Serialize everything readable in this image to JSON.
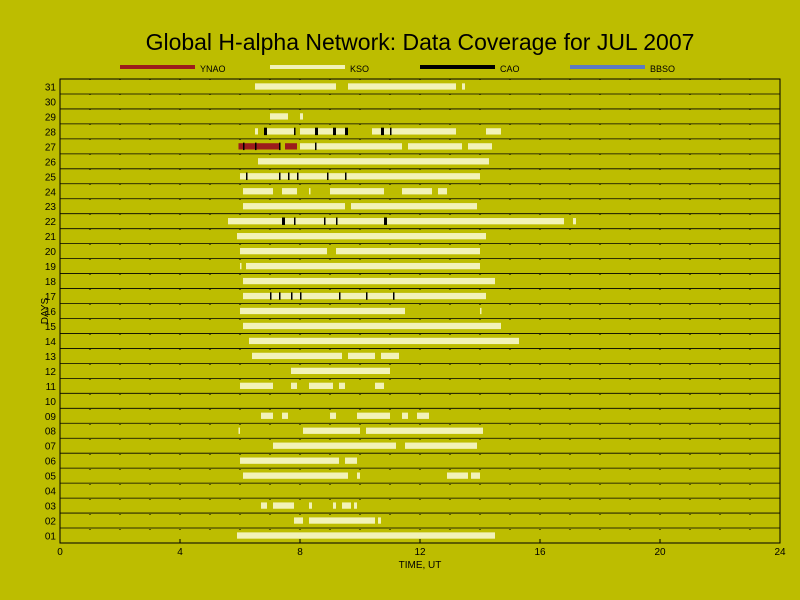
{
  "chart_data": {
    "type": "gantt",
    "title": "Global H-alpha Network: Data Coverage for JUL 2007",
    "xlabel": "TIME, UT",
    "ylabel": "DAYS",
    "xlim": [
      0,
      24
    ],
    "x_ticks": [
      0,
      4,
      8,
      12,
      16,
      20,
      24
    ],
    "days": [
      "01",
      "02",
      "03",
      "04",
      "05",
      "06",
      "07",
      "08",
      "09",
      "10",
      "11",
      "12",
      "13",
      "14",
      "15",
      "16",
      "17",
      "18",
      "19",
      "20",
      "21",
      "22",
      "23",
      "24",
      "25",
      "26",
      "27",
      "28",
      "29",
      "30",
      "31"
    ],
    "grid": "dotted",
    "legend_placement": "top",
    "series": [
      {
        "name": "YNAO",
        "color": "#9c1c1c",
        "intervals": [
          {
            "day": 27,
            "start": 5.95,
            "end": 7.3
          },
          {
            "day": 27,
            "start": 7.5,
            "end": 7.9
          }
        ]
      },
      {
        "name": "KSO",
        "color": "#f2f2b8",
        "intervals": [
          {
            "day": 31,
            "start": 6.5,
            "end": 9.2
          },
          {
            "day": 31,
            "start": 9.6,
            "end": 13.2
          },
          {
            "day": 31,
            "start": 13.4,
            "end": 13.5
          },
          {
            "day": 29,
            "start": 7.0,
            "end": 7.6
          },
          {
            "day": 29,
            "start": 8.0,
            "end": 8.1
          },
          {
            "day": 28,
            "start": 6.5,
            "end": 6.6
          },
          {
            "day": 28,
            "start": 6.8,
            "end": 7.8
          },
          {
            "day": 28,
            "start": 8.0,
            "end": 9.6
          },
          {
            "day": 28,
            "start": 10.4,
            "end": 13.2
          },
          {
            "day": 28,
            "start": 14.2,
            "end": 14.7
          },
          {
            "day": 27,
            "start": 8.0,
            "end": 11.4
          },
          {
            "day": 27,
            "start": 11.6,
            "end": 13.4
          },
          {
            "day": 27,
            "start": 13.6,
            "end": 14.4
          },
          {
            "day": 26,
            "start": 6.6,
            "end": 14.3
          },
          {
            "day": 25,
            "start": 6.0,
            "end": 14.0
          },
          {
            "day": 24,
            "start": 6.1,
            "end": 7.1
          },
          {
            "day": 24,
            "start": 7.4,
            "end": 7.9
          },
          {
            "day": 24,
            "start": 8.3,
            "end": 8.35
          },
          {
            "day": 24,
            "start": 9.0,
            "end": 10.8
          },
          {
            "day": 24,
            "start": 11.4,
            "end": 12.4
          },
          {
            "day": 24,
            "start": 12.6,
            "end": 12.9
          },
          {
            "day": 23,
            "start": 6.1,
            "end": 9.5
          },
          {
            "day": 23,
            "start": 9.7,
            "end": 13.9
          },
          {
            "day": 22,
            "start": 5.6,
            "end": 16.8
          },
          {
            "day": 22,
            "start": 17.1,
            "end": 17.2
          },
          {
            "day": 21,
            "start": 5.9,
            "end": 14.2
          },
          {
            "day": 20,
            "start": 6.0,
            "end": 8.9
          },
          {
            "day": 20,
            "start": 9.2,
            "end": 14.0
          },
          {
            "day": 19,
            "start": 6.0,
            "end": 6.05
          },
          {
            "day": 19,
            "start": 6.2,
            "end": 14.0
          },
          {
            "day": 18,
            "start": 6.1,
            "end": 14.5
          },
          {
            "day": 17,
            "start": 6.1,
            "end": 14.2
          },
          {
            "day": 16,
            "start": 6.0,
            "end": 11.5
          },
          {
            "day": 16,
            "start": 14.0,
            "end": 14.05
          },
          {
            "day": 15,
            "start": 6.1,
            "end": 14.7
          },
          {
            "day": 14,
            "start": 6.3,
            "end": 15.3
          },
          {
            "day": 13,
            "start": 6.4,
            "end": 9.4
          },
          {
            "day": 13,
            "start": 9.6,
            "end": 10.5
          },
          {
            "day": 13,
            "start": 10.7,
            "end": 11.3
          },
          {
            "day": 12,
            "start": 7.7,
            "end": 11.0
          },
          {
            "day": 11,
            "start": 6.0,
            "end": 7.1
          },
          {
            "day": 11,
            "start": 7.7,
            "end": 7.9
          },
          {
            "day": 11,
            "start": 8.3,
            "end": 9.1
          },
          {
            "day": 11,
            "start": 9.3,
            "end": 9.5
          },
          {
            "day": 11,
            "start": 10.5,
            "end": 10.8
          },
          {
            "day": 9,
            "start": 6.7,
            "end": 7.1
          },
          {
            "day": 9,
            "start": 7.4,
            "end": 7.6
          },
          {
            "day": 9,
            "start": 9.0,
            "end": 9.2
          },
          {
            "day": 9,
            "start": 9.9,
            "end": 11.0
          },
          {
            "day": 9,
            "start": 11.4,
            "end": 11.6
          },
          {
            "day": 9,
            "start": 11.9,
            "end": 12.3
          },
          {
            "day": 8,
            "start": 5.95,
            "end": 6.0
          },
          {
            "day": 8,
            "start": 8.1,
            "end": 10.0
          },
          {
            "day": 8,
            "start": 10.2,
            "end": 14.1
          },
          {
            "day": 7,
            "start": 7.1,
            "end": 11.2
          },
          {
            "day": 7,
            "start": 11.5,
            "end": 13.9
          },
          {
            "day": 6,
            "start": 6.0,
            "end": 9.3
          },
          {
            "day": 6,
            "start": 9.5,
            "end": 9.9
          },
          {
            "day": 5,
            "start": 6.1,
            "end": 9.6
          },
          {
            "day": 5,
            "start": 9.9,
            "end": 10.0
          },
          {
            "day": 5,
            "start": 12.9,
            "end": 13.6
          },
          {
            "day": 5,
            "start": 13.7,
            "end": 14.0
          },
          {
            "day": 3,
            "start": 6.7,
            "end": 6.9
          },
          {
            "day": 3,
            "start": 7.1,
            "end": 7.8
          },
          {
            "day": 3,
            "start": 8.3,
            "end": 8.4
          },
          {
            "day": 3,
            "start": 9.1,
            "end": 9.2
          },
          {
            "day": 3,
            "start": 9.4,
            "end": 9.7
          },
          {
            "day": 3,
            "start": 9.8,
            "end": 9.9
          },
          {
            "day": 2,
            "start": 7.8,
            "end": 8.1
          },
          {
            "day": 2,
            "start": 8.3,
            "end": 10.5
          },
          {
            "day": 2,
            "start": 10.6,
            "end": 10.7
          },
          {
            "day": 1,
            "start": 5.9,
            "end": 14.5
          }
        ]
      },
      {
        "name": "CAO",
        "color": "#000000",
        "intervals": [
          {
            "day": 28,
            "start": 6.8,
            "end": 6.9
          },
          {
            "day": 28,
            "start": 7.8,
            "end": 7.85
          },
          {
            "day": 28,
            "start": 8.5,
            "end": 8.6
          },
          {
            "day": 28,
            "start": 9.1,
            "end": 9.2
          },
          {
            "day": 28,
            "start": 9.5,
            "end": 9.6
          },
          {
            "day": 28,
            "start": 10.7,
            "end": 10.8
          },
          {
            "day": 28,
            "start": 11.0,
            "end": 11.05
          },
          {
            "day": 27,
            "start": 6.1,
            "end": 6.15
          },
          {
            "day": 27,
            "start": 6.5,
            "end": 6.55
          },
          {
            "day": 27,
            "start": 7.3,
            "end": 7.35
          },
          {
            "day": 27,
            "start": 8.5,
            "end": 8.55
          },
          {
            "day": 25,
            "start": 6.2,
            "end": 6.25
          },
          {
            "day": 25,
            "start": 7.3,
            "end": 7.35
          },
          {
            "day": 25,
            "start": 7.6,
            "end": 7.65
          },
          {
            "day": 25,
            "start": 7.9,
            "end": 7.95
          },
          {
            "day": 25,
            "start": 8.9,
            "end": 8.95
          },
          {
            "day": 25,
            "start": 9.5,
            "end": 9.55
          },
          {
            "day": 22,
            "start": 7.4,
            "end": 7.5
          },
          {
            "day": 22,
            "start": 7.8,
            "end": 7.85
          },
          {
            "day": 22,
            "start": 8.8,
            "end": 8.85
          },
          {
            "day": 22,
            "start": 9.2,
            "end": 9.25
          },
          {
            "day": 22,
            "start": 10.8,
            "end": 10.9
          },
          {
            "day": 17,
            "start": 7.0,
            "end": 7.05
          },
          {
            "day": 17,
            "start": 7.3,
            "end": 7.35
          },
          {
            "day": 17,
            "start": 7.7,
            "end": 7.75
          },
          {
            "day": 17,
            "start": 8.0,
            "end": 8.05
          },
          {
            "day": 17,
            "start": 9.3,
            "end": 9.35
          },
          {
            "day": 17,
            "start": 10.2,
            "end": 10.25
          },
          {
            "day": 17,
            "start": 11.1,
            "end": 11.15
          }
        ]
      },
      {
        "name": "BBSO",
        "color": "#5d7ac0",
        "intervals": []
      }
    ]
  }
}
